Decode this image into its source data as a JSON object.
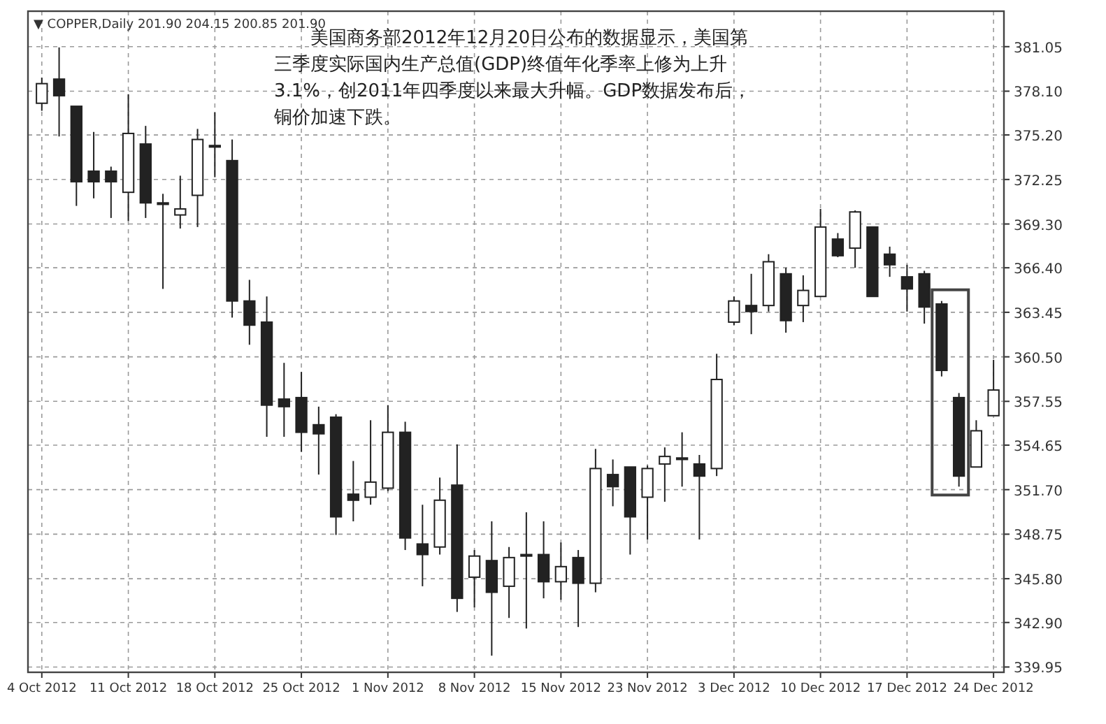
{
  "chart_data": {
    "type": "candlestick",
    "categories": [
      "4 Oct 2012",
      null,
      null,
      null,
      null,
      "11 Oct 2012",
      null,
      null,
      null,
      null,
      "18 Oct 2012",
      null,
      null,
      null,
      null,
      "25 Oct 2012",
      null,
      null,
      null,
      null,
      "1 Nov 2012",
      null,
      null,
      null,
      null,
      "8 Nov 2012",
      null,
      null,
      null,
      null,
      "15 Nov 2012",
      null,
      null,
      null,
      null,
      "23 Nov 2012",
      null,
      null,
      null,
      null,
      "3 Dec 2012",
      null,
      null,
      null,
      null,
      "10 Dec 2012",
      null,
      null,
      null,
      null,
      "17 Dec 2012",
      null,
      null,
      null,
      null,
      "24 Dec 2012"
    ],
    "ohlc": [
      [
        377.3,
        379.0,
        376.8,
        378.6
      ],
      [
        378.9,
        381.0,
        375.1,
        377.8
      ],
      [
        377.1,
        377.1,
        370.5,
        372.1
      ],
      [
        372.8,
        375.4,
        371.0,
        372.1
      ],
      [
        372.8,
        373.1,
        369.7,
        372.1
      ],
      [
        371.4,
        377.9,
        369.5,
        375.3
      ],
      [
        374.6,
        375.8,
        369.7,
        370.7
      ],
      [
        370.7,
        371.3,
        365.0,
        370.6
      ],
      [
        369.9,
        372.5,
        369.0,
        370.3
      ],
      [
        371.2,
        375.6,
        369.1,
        374.9
      ],
      [
        374.5,
        376.7,
        372.4,
        374.4
      ],
      [
        373.5,
        374.9,
        363.1,
        364.2
      ],
      [
        364.2,
        365.6,
        361.3,
        362.6
      ],
      [
        362.8,
        364.5,
        355.2,
        357.3
      ],
      [
        357.7,
        360.1,
        355.2,
        357.2
      ],
      [
        357.8,
        359.5,
        354.2,
        355.5
      ],
      [
        356.0,
        357.2,
        352.7,
        355.4
      ],
      [
        356.5,
        356.7,
        348.7,
        349.9
      ],
      [
        351.4,
        353.6,
        349.6,
        351.0
      ],
      [
        351.2,
        356.3,
        350.7,
        352.2
      ],
      [
        351.8,
        357.3,
        351.6,
        355.5
      ],
      [
        355.5,
        356.2,
        347.7,
        348.5
      ],
      [
        348.1,
        350.7,
        345.3,
        347.4
      ],
      [
        347.9,
        352.5,
        347.4,
        351.0
      ],
      [
        352.0,
        354.7,
        343.6,
        344.5
      ],
      [
        345.9,
        347.7,
        343.9,
        347.3
      ],
      [
        347.0,
        349.6,
        340.7,
        344.9
      ],
      [
        345.3,
        347.9,
        343.2,
        347.2
      ],
      [
        347.4,
        350.2,
        342.5,
        347.3
      ],
      [
        347.4,
        349.6,
        344.5,
        345.6
      ],
      [
        345.6,
        348.2,
        344.4,
        346.6
      ],
      [
        347.2,
        347.7,
        342.6,
        345.5
      ],
      [
        345.5,
        354.4,
        344.9,
        353.1
      ],
      [
        352.7,
        353.7,
        350.6,
        351.9
      ],
      [
        353.2,
        353.2,
        347.4,
        349.9
      ],
      [
        351.2,
        353.3,
        348.4,
        353.1
      ],
      [
        353.4,
        354.5,
        350.9,
        353.9
      ],
      [
        353.8,
        355.5,
        351.9,
        353.7
      ],
      [
        353.4,
        354.0,
        348.4,
        352.6
      ],
      [
        353.1,
        360.7,
        352.6,
        359.0
      ],
      [
        362.8,
        364.5,
        362.6,
        364.2
      ],
      [
        363.9,
        366.0,
        362.0,
        363.5
      ],
      [
        363.9,
        367.3,
        363.5,
        366.8
      ],
      [
        366.0,
        366.4,
        362.1,
        362.9
      ],
      [
        363.9,
        365.9,
        362.8,
        364.9
      ],
      [
        364.5,
        370.3,
        364.5,
        369.1
      ],
      [
        368.3,
        368.7,
        367.1,
        367.2
      ],
      [
        367.7,
        370.2,
        366.4,
        370.1
      ],
      [
        369.1,
        369.1,
        364.5,
        364.5
      ],
      [
        367.3,
        367.8,
        365.8,
        366.6
      ],
      [
        365.8,
        366.6,
        363.5,
        365.0
      ],
      [
        366.0,
        366.2,
        362.7,
        363.8
      ],
      [
        364.0,
        364.2,
        359.2,
        359.6
      ],
      [
        357.8,
        358.1,
        351.9,
        352.6
      ],
      [
        353.2,
        356.3,
        353.2,
        355.6
      ],
      [
        356.6,
        360.3,
        356.6,
        358.3
      ]
    ],
    "ylim": [
      339.6,
      383.4
    ],
    "yticks": [
      {
        "value": 339.95,
        "label": "339.95"
      },
      {
        "value": 342.9,
        "label": "342.90"
      },
      {
        "value": 345.8,
        "label": "345.80"
      },
      {
        "value": 348.75,
        "label": "348.75"
      },
      {
        "value": 351.7,
        "label": "351.70"
      },
      354.65,
      357.55,
      {
        "value": 360.5,
        "label": "360.50"
      },
      363.45,
      {
        "value": 366.4,
        "label": "366.40"
      },
      {
        "value": 369.3,
        "label": "369.30"
      },
      372.25,
      {
        "value": 375.2,
        "label": "375.20"
      },
      {
        "value": 378.1,
        "label": "378.10"
      },
      381.05
    ],
    "grid": true,
    "annotations": [
      "▼ COPPER,Daily 201.90 204.15 200.85 201.90",
      "美国商务部2012年12月20日公布的数据显示，美国第三季度实际国内生产总值(GDP)终值年化季率上修为上升3.1%，创2011年四季度以来最大升幅。GDP数据发布后，铜价加速下跌。"
    ]
  }
}
